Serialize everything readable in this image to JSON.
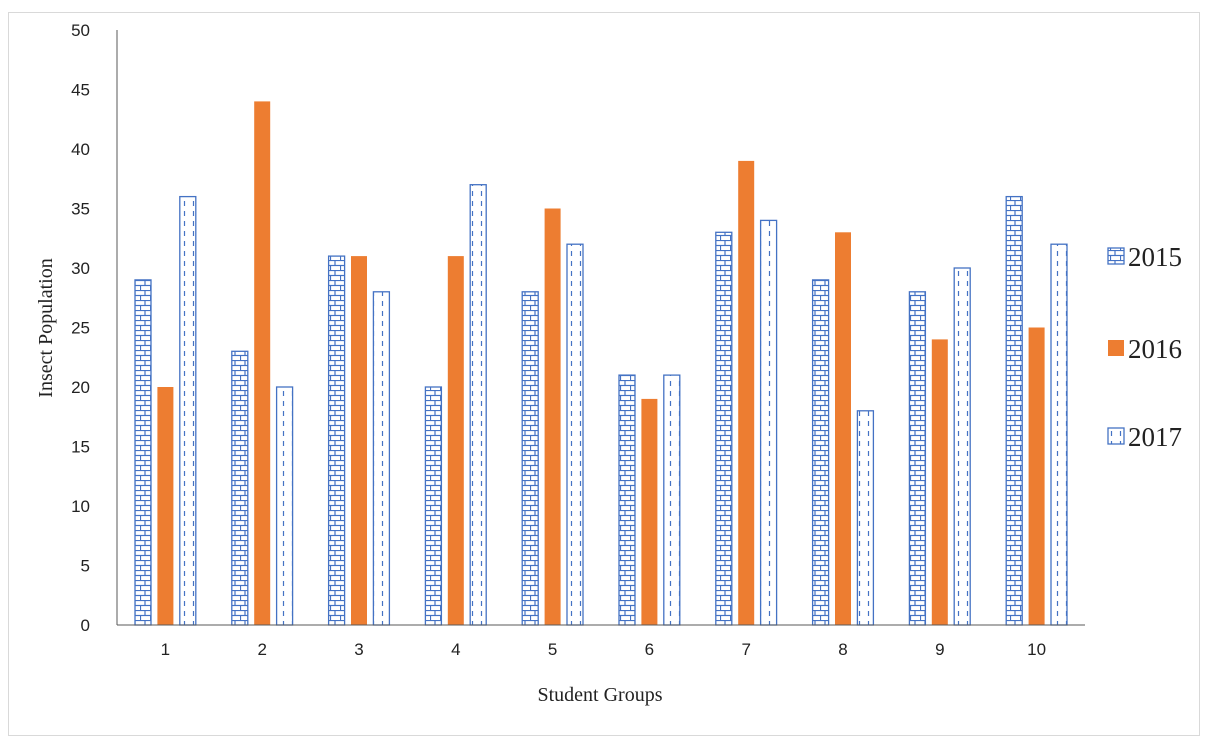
{
  "chart_data": {
    "type": "bar",
    "title": "",
    "xlabel": "Student Groups",
    "ylabel": "Insect Population",
    "ylim": [
      0,
      50
    ],
    "yticks": [
      0,
      5,
      10,
      15,
      20,
      25,
      30,
      35,
      40,
      45,
      50
    ],
    "grid": false,
    "legend_position": "right",
    "categories": [
      "1",
      "2",
      "3",
      "4",
      "5",
      "6",
      "7",
      "8",
      "9",
      "10"
    ],
    "series": [
      {
        "name": "2015",
        "values": [
          29,
          23,
          31,
          20,
          28,
          21,
          33,
          29,
          28,
          36
        ],
        "color": "#4472c4",
        "pattern": "brick"
      },
      {
        "name": "2016",
        "values": [
          20,
          44,
          31,
          31,
          35,
          19,
          39,
          33,
          24,
          25
        ],
        "color": "#ed7d31",
        "pattern": "solid"
      },
      {
        "name": "2017",
        "values": [
          36,
          20,
          28,
          37,
          32,
          21,
          34,
          18,
          30,
          32
        ],
        "color": "#4472c4",
        "pattern": "dashed-vertical"
      }
    ]
  }
}
